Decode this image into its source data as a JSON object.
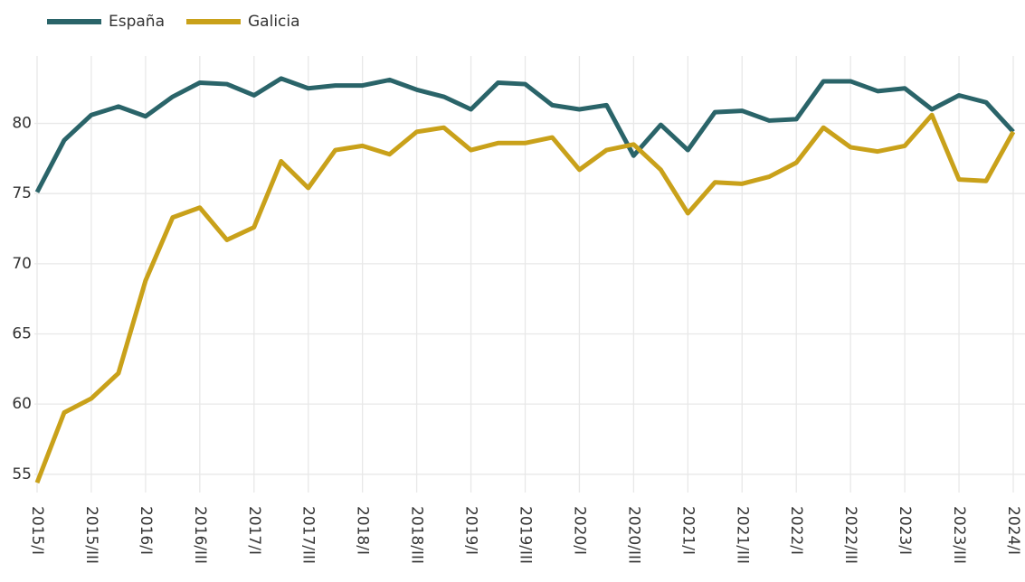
{
  "chart_data": {
    "type": "line",
    "categories": [
      "2015/I",
      null,
      "2015/III",
      null,
      "2016/I",
      null,
      "2016/III",
      null,
      "2017/I",
      null,
      "2017/III",
      null,
      "2018/I",
      null,
      "2018/III",
      null,
      "2019/I",
      null,
      "2019/III",
      null,
      "2020/I",
      null,
      "2020/III",
      null,
      "2021/I",
      null,
      "2021/III",
      null,
      "2022/I",
      null,
      "2022/III",
      null,
      "2023/I",
      null,
      "2023/III",
      null,
      "2024/I"
    ],
    "series": [
      {
        "name": "España",
        "color": "#2a6469",
        "values": [
          75.1,
          78.8,
          80.6,
          81.2,
          80.5,
          81.9,
          82.9,
          82.8,
          82.0,
          83.2,
          82.5,
          82.7,
          82.7,
          83.1,
          82.4,
          81.9,
          81.0,
          82.9,
          82.8,
          81.3,
          81.0,
          81.3,
          77.7,
          79.9,
          78.1,
          80.8,
          80.9,
          80.2,
          80.3,
          83.0,
          83.0,
          82.3,
          82.5,
          81.0,
          82.0,
          81.5,
          79.4
        ]
      },
      {
        "name": "Galicia",
        "color": "#c9a11a",
        "values": [
          54.4,
          59.4,
          60.4,
          62.2,
          68.8,
          73.3,
          74.0,
          71.7,
          72.6,
          77.3,
          75.4,
          78.1,
          78.4,
          77.8,
          79.4,
          79.7,
          78.1,
          78.6,
          78.6,
          79.0,
          76.7,
          78.1,
          78.5,
          76.7,
          73.6,
          75.8,
          75.7,
          76.2,
          77.2,
          79.7,
          78.3,
          78.0,
          78.4,
          80.6,
          76.0,
          75.9,
          79.4
        ]
      }
    ],
    "ylim": [
      53.7,
      84.8
    ],
    "yticks": [
      55,
      60,
      65,
      70,
      75,
      80
    ],
    "grid": true,
    "legend": "top-left"
  }
}
